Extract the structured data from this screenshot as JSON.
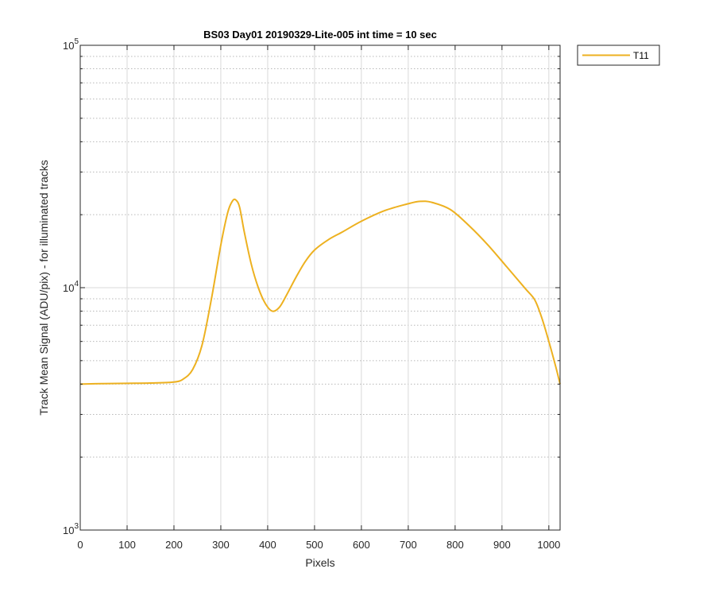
{
  "chart_data": {
    "type": "line",
    "title": "BS03 Day01 20190329-Lite-005 int time = 10 sec",
    "xlabel": "Pixels",
    "ylabel": "Track Mean Signal (ADU/pix) - for illuminated tracks",
    "xlim": [
      0,
      1024
    ],
    "ylim": [
      1000,
      100000
    ],
    "yscale": "log",
    "grid": true,
    "minor_grid": true,
    "legend_placement": "outside-top-right",
    "x_ticks": [
      "0",
      "100",
      "200",
      "300",
      "400",
      "500",
      "600",
      "700",
      "800",
      "900",
      "1000"
    ],
    "y_ticks": [
      {
        "base": "10",
        "exp": "3",
        "value": 1000
      },
      {
        "base": "10",
        "exp": "4",
        "value": 10000
      },
      {
        "base": "10",
        "exp": "5",
        "value": 100000
      }
    ],
    "series": [
      {
        "name": "T11",
        "color": "#EDB120",
        "points": [
          [
            0,
            4000
          ],
          [
            50,
            4020
          ],
          [
            100,
            4030
          ],
          [
            150,
            4040
          ],
          [
            200,
            4080
          ],
          [
            220,
            4200
          ],
          [
            240,
            4600
          ],
          [
            260,
            5800
          ],
          [
            280,
            9000
          ],
          [
            300,
            15000
          ],
          [
            315,
            20500
          ],
          [
            325,
            22800
          ],
          [
            332,
            23000
          ],
          [
            340,
            21500
          ],
          [
            350,
            17000
          ],
          [
            365,
            12500
          ],
          [
            380,
            10000
          ],
          [
            395,
            8600
          ],
          [
            410,
            8000
          ],
          [
            425,
            8300
          ],
          [
            440,
            9300
          ],
          [
            460,
            11000
          ],
          [
            480,
            12800
          ],
          [
            500,
            14300
          ],
          [
            530,
            15800
          ],
          [
            560,
            17000
          ],
          [
            600,
            18800
          ],
          [
            650,
            20800
          ],
          [
            700,
            22200
          ],
          [
            725,
            22700
          ],
          [
            750,
            22500
          ],
          [
            790,
            21000
          ],
          [
            830,
            18000
          ],
          [
            870,
            15000
          ],
          [
            910,
            12200
          ],
          [
            950,
            9900
          ],
          [
            970,
            8900
          ],
          [
            985,
            7500
          ],
          [
            1000,
            6000
          ],
          [
            1015,
            4700
          ],
          [
            1024,
            4000
          ]
        ]
      }
    ]
  }
}
